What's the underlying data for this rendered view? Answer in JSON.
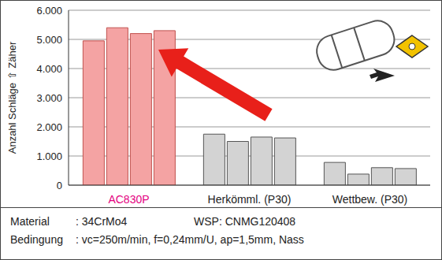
{
  "chart_data": {
    "type": "bar",
    "y_label": "Anzahl Schläge ⇧ Zäher",
    "categories": [
      "AC830P",
      "Herkömml. (P30)",
      "Wettbew. (P30)"
    ],
    "series": [
      {
        "values": [
          4950,
          1750,
          780
        ]
      },
      {
        "values": [
          5400,
          1500,
          380
        ]
      },
      {
        "values": [
          5200,
          1650,
          600
        ]
      },
      {
        "values": [
          5300,
          1620,
          570
        ]
      }
    ],
    "colors": [
      "#f4a3a3",
      "#d3d3d3",
      "#d3d3d3"
    ],
    "ylim": [
      0,
      6000
    ],
    "yticks": [
      0,
      {
        "value": 1000,
        "label": "1.000"
      },
      {
        "value": 2000,
        "label": "2.000"
      },
      {
        "value": 3000,
        "label": "3.000"
      },
      {
        "value": 4000,
        "label": "4.000"
      },
      {
        "value": 5000,
        "label": "5.000"
      },
      {
        "value": 6000,
        "label": "6.000"
      }
    ],
    "grid": true
  },
  "footer": {
    "rows": [
      [
        "Material",
        ": 34CrMo4",
        "WSP: CNMG120408"
      ],
      [
        "Bedingung",
        ": vc=250m/min, f=0,24mm/U, ap=1,5mm, Nass"
      ]
    ]
  }
}
